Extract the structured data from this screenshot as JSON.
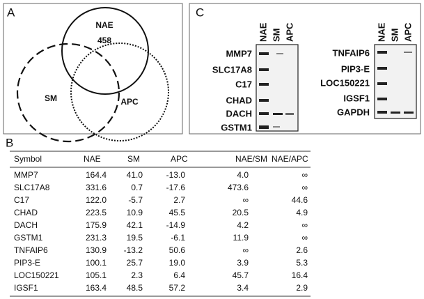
{
  "panel_a": {
    "label": "A",
    "sets": [
      {
        "label": "NAE",
        "count": "458"
      },
      {
        "label": "SM"
      },
      {
        "label": "APC"
      }
    ]
  },
  "panel_c": {
    "label": "C",
    "gels": [
      {
        "lanes": [
          "NAE",
          "SM",
          "APC"
        ],
        "genes": [
          "MMP7",
          "SLC17A8",
          "C17",
          "CHAD",
          "DACH",
          "GSTM1"
        ]
      },
      {
        "lanes": [
          "NAE",
          "SM",
          "APC"
        ],
        "genes": [
          "TNFAIP6",
          "PIP3-E",
          "LOC150221",
          "IGSF1",
          "GAPDH"
        ]
      }
    ]
  },
  "panel_b": {
    "label": "B",
    "table": {
      "header": [
        "Symbol",
        "NAE",
        "SM",
        "APC",
        "NAE/SM",
        "NAE/APC"
      ],
      "rows": [
        [
          "MMP7",
          "164.4",
          "41.0",
          "-13.0",
          "4.0",
          "∞"
        ],
        [
          "SLC17A8",
          "331.6",
          "0.7",
          "-17.6",
          "473.6",
          "∞"
        ],
        [
          "C17",
          "122.0",
          "-5.7",
          "2.7",
          "∞",
          "44.6"
        ],
        [
          "CHAD",
          "223.5",
          "10.9",
          "45.5",
          "20.5",
          "4.9"
        ],
        [
          "DACH",
          "175.9",
          "42.1",
          "-14.9",
          "4.2",
          "∞"
        ],
        [
          "GSTM1",
          "231.3",
          "19.5",
          "-6.1",
          "11.9",
          "∞"
        ],
        [
          "TNFAIP6",
          "130.9",
          "-13.2",
          "50.6",
          "∞",
          "2.6"
        ],
        [
          "PIP3-E",
          "100.1",
          "25.7",
          "19.0",
          "3.9",
          "5.3"
        ],
        [
          "LOC150221",
          "105.1",
          "2.3",
          "6.4",
          "45.7",
          "16.4"
        ],
        [
          "IGSF1",
          "163.4",
          "48.5",
          "57.2",
          "3.4",
          "2.9"
        ]
      ]
    }
  }
}
